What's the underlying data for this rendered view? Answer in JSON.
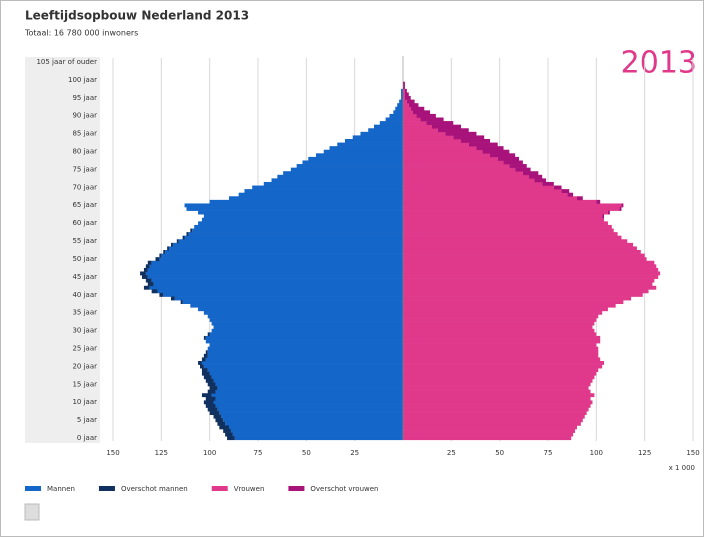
{
  "chart_data": {
    "type": "pyramid",
    "title": "Leeftijdsopbouw Nederland 2013",
    "subtitle": "Totaal: 16 780 000 inwoners",
    "annotation": "2013",
    "x_unit_label": "x 1 000",
    "categories": [
      "0 jaar",
      null,
      null,
      null,
      null,
      "5 jaar",
      null,
      null,
      null,
      null,
      "10 jaar",
      null,
      null,
      null,
      null,
      "15 jaar",
      null,
      null,
      null,
      null,
      "20 jaar",
      null,
      null,
      null,
      null,
      "25 jaar",
      null,
      null,
      null,
      null,
      "30 jaar",
      null,
      null,
      null,
      null,
      "35 jaar",
      null,
      null,
      null,
      null,
      "40 jaar",
      null,
      null,
      null,
      null,
      "45 jaar",
      null,
      null,
      null,
      null,
      "50 jaar",
      null,
      null,
      null,
      null,
      "55 jaar",
      null,
      null,
      null,
      null,
      "60 jaar",
      null,
      null,
      null,
      null,
      "65 jaar",
      null,
      null,
      null,
      null,
      "70 jaar",
      null,
      null,
      null,
      null,
      "75 jaar",
      null,
      null,
      null,
      null,
      "80 jaar",
      null,
      null,
      null,
      null,
      "85 jaar",
      null,
      null,
      null,
      null,
      "90 jaar",
      null,
      null,
      null,
      null,
      "95 jaar",
      null,
      null,
      null,
      null,
      "100 jaar",
      null,
      null,
      null,
      null,
      "105 jaar of ouder"
    ],
    "series": [
      {
        "name": "Mannen",
        "side": "left",
        "color": "#1466c8",
        "values": [
          87,
          88,
          89,
          90,
          92,
          93,
          94,
          95,
          96,
          97,
          98,
          97,
          99,
          97,
          96,
          97,
          98,
          99,
          100,
          101,
          103,
          104,
          102,
          101,
          101,
          101,
          100,
          102,
          102,
          100,
          99,
          98,
          99,
          100,
          101,
          103,
          106,
          110,
          114,
          118,
          124,
          127,
          131,
          129,
          130,
          132,
          133,
          132,
          131,
          130,
          126,
          125,
          123,
          121,
          119,
          116,
          113,
          111,
          109,
          108,
          106,
          104,
          103,
          106,
          112,
          113,
          100,
          90,
          85,
          82,
          78,
          72,
          68,
          65,
          62,
          58,
          55,
          52,
          49,
          45,
          41,
          38,
          34,
          30,
          26,
          22,
          18,
          15,
          12,
          9,
          7,
          5,
          4,
          3,
          2,
          1,
          1,
          1,
          0,
          0,
          0,
          0,
          0,
          0,
          0,
          0
        ]
      },
      {
        "name": "Overschot mannen",
        "side": "left",
        "color": "#10305f",
        "values": [
          4,
          4,
          4,
          5,
          4,
          4,
          4,
          5,
          5,
          5,
          5,
          5,
          5,
          4,
          4,
          4,
          4,
          4,
          4,
          3,
          2,
          2,
          2,
          2,
          1,
          0,
          0,
          0,
          1,
          1,
          0,
          0,
          0,
          0,
          0,
          0,
          0,
          0,
          1,
          2,
          2,
          3,
          3,
          3,
          3,
          3,
          3,
          2,
          2,
          2,
          2,
          1,
          1,
          1,
          1,
          1,
          1,
          1,
          1,
          0,
          0,
          0,
          0,
          0,
          0,
          0,
          0,
          0,
          0,
          0,
          0,
          0,
          0,
          0,
          0,
          0,
          0,
          0,
          0,
          0,
          0,
          0,
          0,
          0,
          0,
          0,
          0,
          0,
          0,
          0,
          0,
          0,
          0,
          0,
          0,
          0,
          0,
          0,
          0,
          0,
          0,
          0,
          0,
          0,
          0,
          0
        ]
      },
      {
        "name": "Vrouwen",
        "side": "right",
        "color": "#e0398b",
        "values": [
          87,
          88,
          89,
          90,
          92,
          93,
          94,
          95,
          96,
          97,
          98,
          97,
          99,
          97,
          96,
          97,
          98,
          99,
          100,
          101,
          103,
          104,
          102,
          101,
          101,
          101,
          100,
          102,
          102,
          100,
          99,
          98,
          99,
          100,
          101,
          103,
          106,
          110,
          114,
          118,
          124,
          127,
          131,
          129,
          130,
          132,
          133,
          132,
          131,
          130,
          126,
          125,
          123,
          121,
          119,
          116,
          113,
          111,
          109,
          108,
          106,
          104,
          103,
          106,
          112,
          113,
          100,
          90,
          85,
          82,
          78,
          72,
          68,
          65,
          62,
          58,
          55,
          52,
          49,
          45,
          41,
          38,
          34,
          30,
          26,
          22,
          18,
          15,
          12,
          9,
          7,
          5,
          4,
          3,
          2,
          1,
          1,
          1,
          0,
          0,
          0,
          0,
          0,
          0,
          0,
          0
        ]
      },
      {
        "name": "Overschot vrouwen",
        "side": "right",
        "color": "#a8137b",
        "values": [
          0,
          0,
          0,
          0,
          0,
          0,
          0,
          0,
          0,
          0,
          0,
          0,
          0,
          0,
          0,
          0,
          0,
          0,
          0,
          0,
          0,
          0,
          0,
          0,
          0,
          0,
          0,
          0,
          0,
          0,
          0,
          0,
          0,
          0,
          0,
          0,
          0,
          0,
          0,
          0,
          0,
          0,
          0,
          0,
          0,
          0,
          0,
          0,
          0,
          0,
          0,
          0,
          0,
          0,
          0,
          0,
          0,
          0,
          0,
          0,
          0,
          0,
          1,
          1,
          1,
          1,
          2,
          3,
          3,
          4,
          4,
          6,
          6,
          7,
          8,
          8,
          9,
          10,
          11,
          13,
          14,
          14,
          15,
          15,
          16,
          16,
          16,
          15,
          14,
          12,
          10,
          9,
          7,
          5,
          4,
          3,
          2,
          1,
          1,
          1,
          0,
          0,
          0,
          0,
          0,
          0
        ]
      }
    ],
    "xlim": [
      0,
      150
    ],
    "xticks": [
      25,
      50,
      75,
      100,
      125,
      150
    ],
    "grid": true
  }
}
